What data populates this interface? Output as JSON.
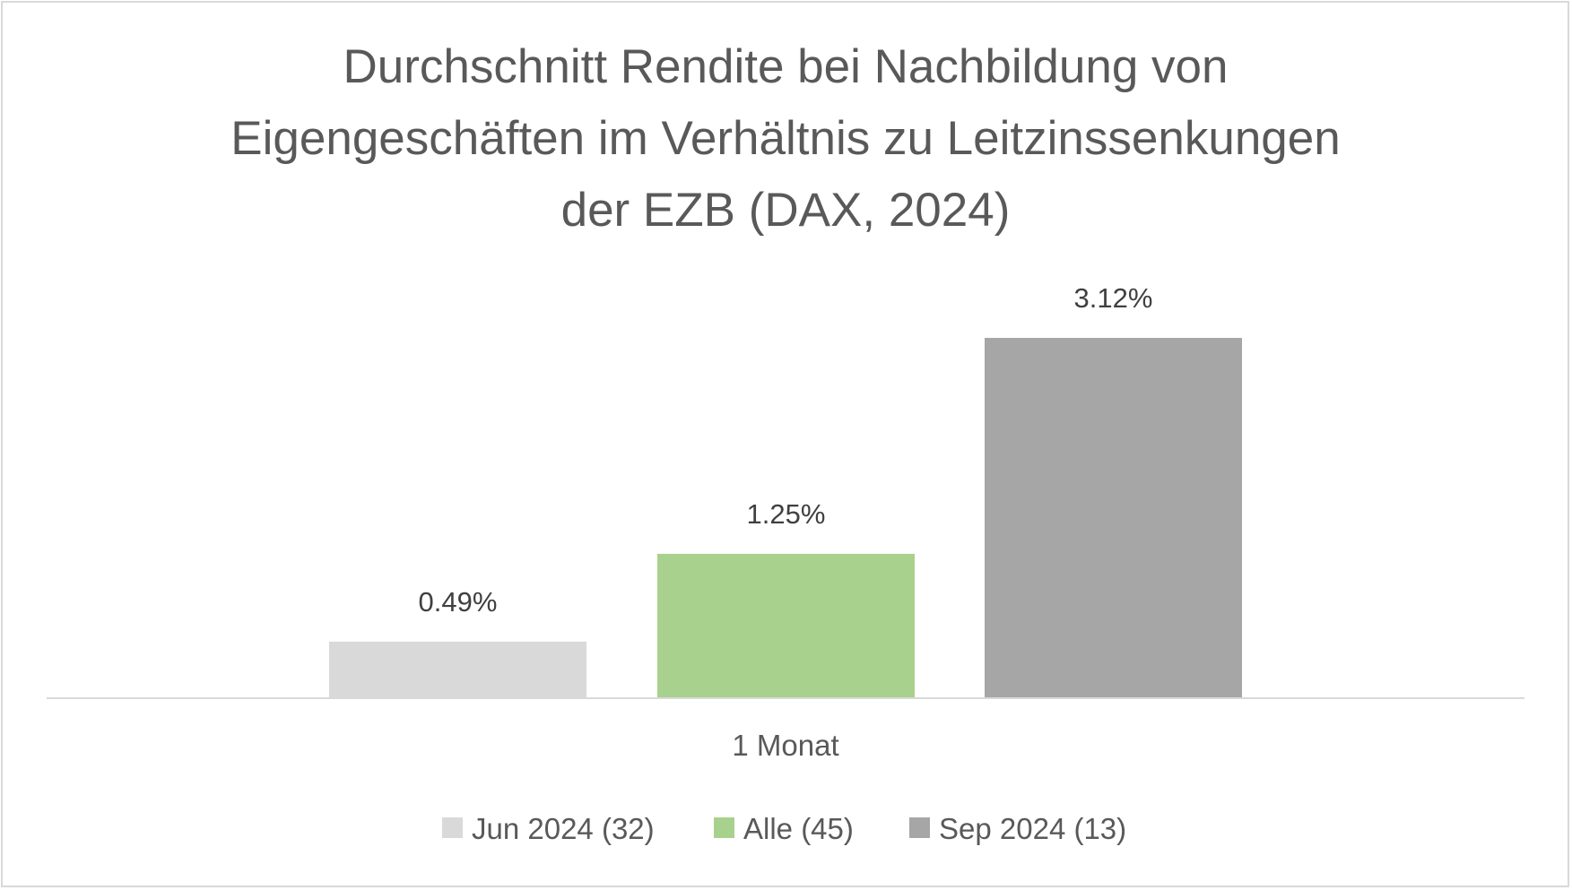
{
  "chart_data": {
    "type": "bar",
    "title_lines": [
      "Durchschnitt Rendite bei Nachbildung von",
      "Eigengeschäften im Verhältnis zu Leitzinssenkungen",
      "der EZB (DAX, 2024)"
    ],
    "categories": [
      "1 Monat"
    ],
    "series": [
      {
        "name": "Jun 2024 (32)",
        "values": [
          0.49
        ],
        "label": "0.49%",
        "color": "#d9d9d9"
      },
      {
        "name": "Alle (45)",
        "values": [
          1.25
        ],
        "label": "1.25%",
        "color": "#a9d18e"
      },
      {
        "name": "Sep 2024 (13)",
        "values": [
          3.12
        ],
        "label": "3.12%",
        "color": "#a6a6a6"
      }
    ],
    "ylim": [
      0,
      3.12
    ],
    "unit": "%",
    "grid": false,
    "legend_position": "bottom",
    "axis_color": "#d9d9d9"
  }
}
